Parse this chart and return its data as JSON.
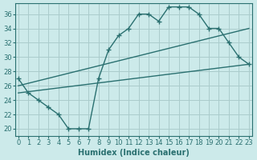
{
  "xlabel": "Humidex (Indice chaleur)",
  "background_color": "#cceaea",
  "grid_color": "#aacccc",
  "line_color": "#2a7070",
  "main_curve_x": [
    0,
    1,
    2,
    3,
    4,
    5,
    6,
    7,
    8,
    9,
    10,
    11,
    12,
    13,
    14,
    15,
    16,
    17,
    18,
    19,
    20,
    21,
    22,
    23
  ],
  "main_curve_y": [
    27,
    25,
    24,
    23,
    22,
    20,
    20,
    20,
    27,
    31,
    33,
    34,
    36,
    36,
    35,
    37,
    37,
    37,
    36,
    34,
    34,
    32,
    30,
    29
  ],
  "ref_line1_x": [
    0,
    23
  ],
  "ref_line1_y": [
    25,
    29
  ],
  "ref_line2_x": [
    0,
    23
  ],
  "ref_line2_y": [
    26,
    34
  ],
  "xlim": [
    -0.3,
    23.3
  ],
  "ylim": [
    19.0,
    37.5
  ],
  "yticks": [
    20,
    22,
    24,
    26,
    28,
    30,
    32,
    34,
    36
  ],
  "xticks": [
    0,
    1,
    2,
    3,
    4,
    5,
    6,
    7,
    8,
    9,
    10,
    11,
    12,
    13,
    14,
    15,
    16,
    17,
    18,
    19,
    20,
    21,
    22,
    23
  ]
}
